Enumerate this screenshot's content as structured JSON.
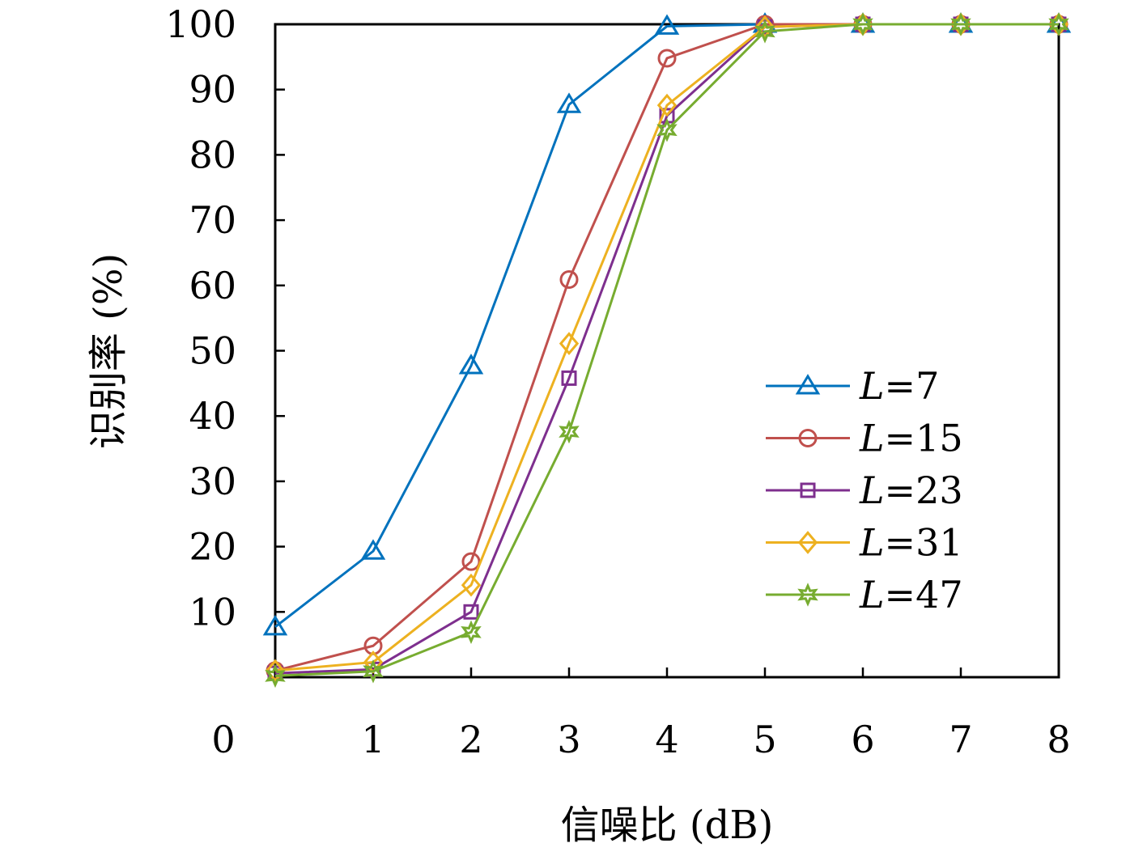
{
  "chart_data": {
    "type": "line",
    "xlabel": "信噪比 (dB)",
    "ylabel": "识别率 (%)",
    "xlim": [
      0,
      8
    ],
    "ylim": [
      0,
      100
    ],
    "x_origin_label": "0",
    "x_ticks": [
      1,
      2,
      3,
      4,
      5,
      6,
      7,
      8
    ],
    "y_ticks": [
      10,
      20,
      30,
      40,
      50,
      60,
      70,
      80,
      90,
      100
    ],
    "grid": false,
    "legend_position": "right-middle",
    "legend_var": "L",
    "x": [
      0,
      1,
      2,
      3,
      4,
      5,
      6,
      7,
      8
    ],
    "series": [
      {
        "name": "L=7",
        "legend_value": "7",
        "color": "#0072BD",
        "marker": "triangle",
        "values": [
          7.7,
          19.3,
          47.7,
          87.7,
          99.7,
          100,
          100,
          100,
          100
        ]
      },
      {
        "name": "L=15",
        "legend_value": "15",
        "color": "#C0504D",
        "marker": "circle",
        "values": [
          1.0,
          4.8,
          17.7,
          60.9,
          94.8,
          100,
          100,
          100,
          100
        ]
      },
      {
        "name": "L=23",
        "legend_value": "23",
        "color": "#7E2F8E",
        "marker": "square",
        "values": [
          0.6,
          1.2,
          10.0,
          45.8,
          86.0,
          99.6,
          100,
          100,
          100
        ]
      },
      {
        "name": "L=31",
        "legend_value": "31",
        "color": "#EDB120",
        "marker": "diamond",
        "values": [
          1.0,
          2.3,
          14.1,
          51.1,
          87.6,
          99.6,
          100,
          100,
          100
        ]
      },
      {
        "name": "L=47",
        "legend_value": "47",
        "color": "#77AC30",
        "marker": "star",
        "values": [
          0.2,
          0.9,
          6.9,
          37.6,
          83.8,
          98.9,
          100,
          100,
          100
        ]
      }
    ]
  }
}
